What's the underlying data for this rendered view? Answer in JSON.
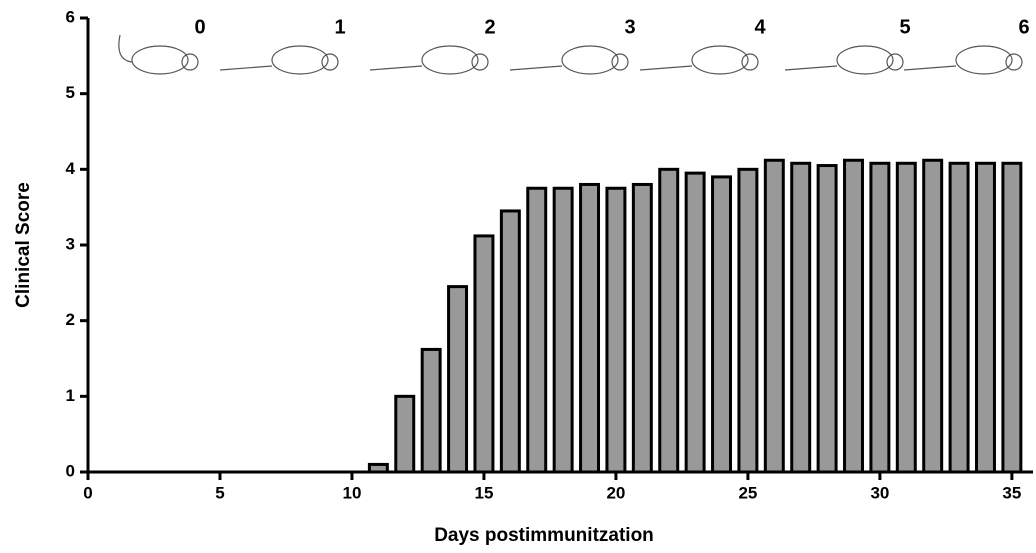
{
  "chart_data": {
    "type": "bar",
    "x_label": "Days postimmunitzation",
    "y_label": "Clinical Score",
    "x": [
      11,
      12,
      13,
      14,
      15,
      16,
      17,
      18,
      19,
      20,
      21,
      22,
      23,
      24,
      25,
      26,
      27,
      28,
      29,
      30,
      31,
      32,
      33,
      34,
      35
    ],
    "values": [
      0.1,
      1.0,
      1.62,
      2.45,
      3.12,
      3.45,
      3.75,
      3.75,
      3.8,
      3.75,
      3.8,
      4.0,
      3.95,
      3.9,
      4.0,
      4.12,
      4.08,
      4.05,
      4.12,
      4.08,
      4.08,
      4.12,
      4.08,
      4.08,
      4.08
    ],
    "color": "#999999",
    "xlim": [
      0,
      35.8
    ],
    "xticks": [
      0,
      5,
      10,
      15,
      20,
      25,
      30,
      35
    ],
    "ylim": [
      0,
      6
    ],
    "yticks": [
      0,
      1,
      2,
      3,
      4,
      5,
      6
    ],
    "score_annotations": [
      0,
      1,
      2,
      3,
      4,
      5,
      6
    ]
  }
}
